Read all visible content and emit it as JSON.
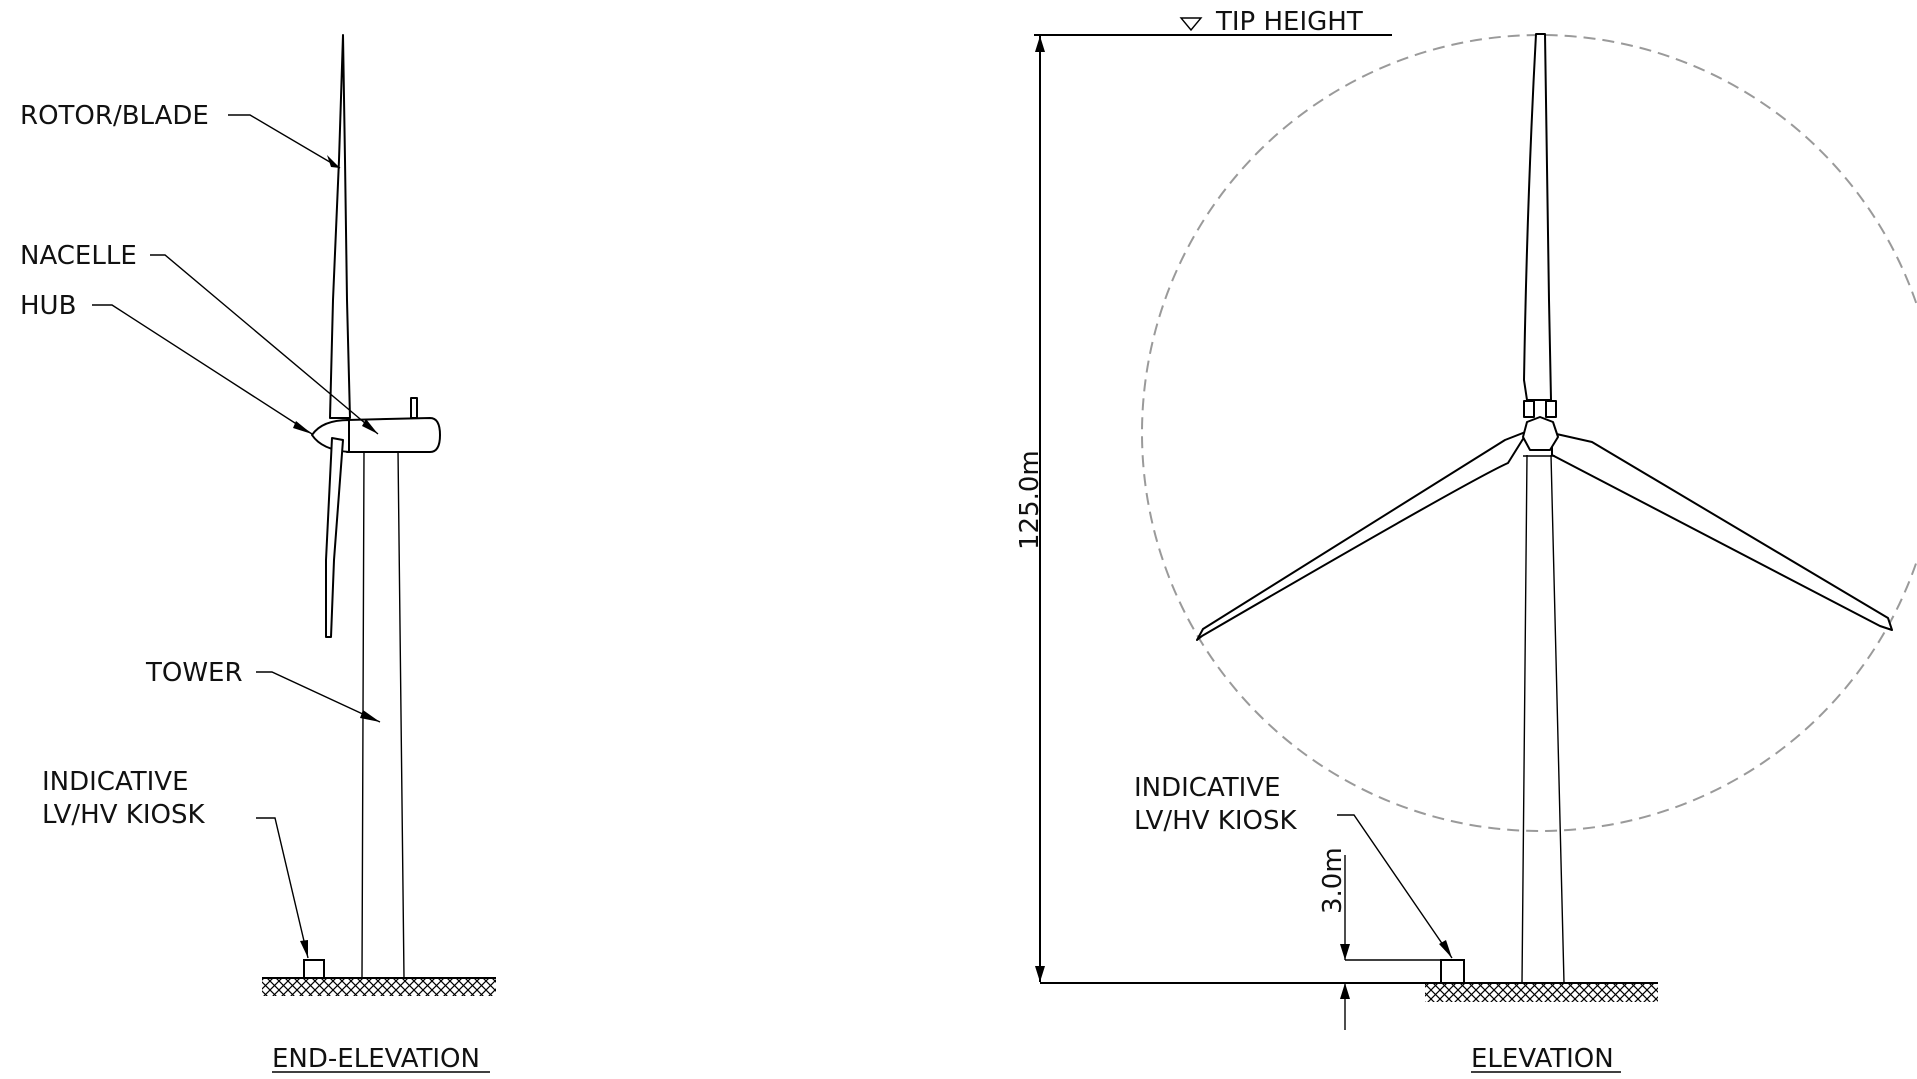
{
  "end_elevation": {
    "title": "END-ELEVATION",
    "labels": {
      "rotor_blade": "ROTOR/BLADE",
      "nacelle": "NACELLE",
      "hub": "HUB",
      "tower": "TOWER",
      "kiosk_line1": "INDICATIVE",
      "kiosk_line2": "LV/HV KIOSK"
    }
  },
  "elevation": {
    "title": "ELEVATION",
    "tip_height_label": "TIP HEIGHT",
    "tip_height_dimension": "125.0m",
    "kiosk_height_dimension": "3.0m",
    "labels": {
      "kiosk_line1": "INDICATIVE",
      "kiosk_line2": "LV/HV KIOSK"
    }
  },
  "colors": {
    "line": "#000000",
    "rotor_circle": "#9a9a9a",
    "background": "#ffffff"
  }
}
